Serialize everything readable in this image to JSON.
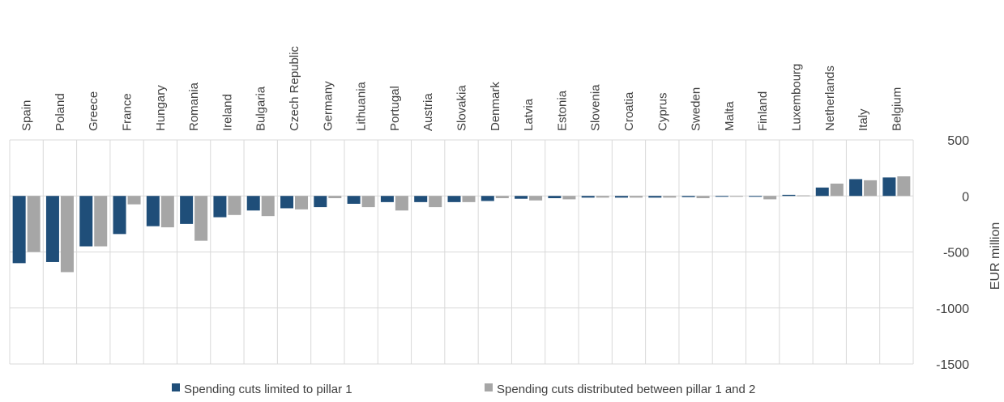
{
  "chart_data": {
    "type": "bar",
    "categories": [
      "Spain",
      "Poland",
      "Greece",
      "France",
      "Hungary",
      "Romania",
      "Ireland",
      "Bulgaria",
      "Czech Republic",
      "Germany",
      "Lithuania",
      "Portugal",
      "Austria",
      "Slovakia",
      "Denmark",
      "Latvia",
      "Estonia",
      "Slovenia",
      "Croatia",
      "Cyprus",
      "Sweden",
      "Malta",
      "Finland",
      "Luxembourg",
      "Netherlands",
      "Italy",
      "Belgium"
    ],
    "series": [
      {
        "name": "Spending cuts limited to pillar 1",
        "color": "#1f4e79",
        "values": [
          -600,
          -590,
          -450,
          -340,
          -270,
          -250,
          -190,
          -130,
          -110,
          -100,
          -70,
          -55,
          -55,
          -55,
          -45,
          -25,
          -20,
          -15,
          -15,
          -15,
          -10,
          -5,
          -5,
          10,
          75,
          150,
          165
        ]
      },
      {
        "name": "Spending cuts distributed between pillar 1 and 2",
        "color": "#a6a6a6",
        "values": [
          -500,
          -680,
          -450,
          -75,
          -280,
          -400,
          -170,
          -180,
          -120,
          -20,
          -100,
          -130,
          -100,
          -55,
          -20,
          -40,
          -30,
          -15,
          -15,
          -15,
          -20,
          -5,
          -30,
          5,
          110,
          140,
          175
        ]
      }
    ],
    "ylabel": "EUR million",
    "xlabel": "",
    "title": "",
    "yticks": [
      500,
      0,
      -500,
      -1000,
      -1500
    ],
    "ylim": [
      -1500,
      500
    ],
    "grid": true,
    "category_axis_position": "top",
    "legend_position": "bottom"
  }
}
